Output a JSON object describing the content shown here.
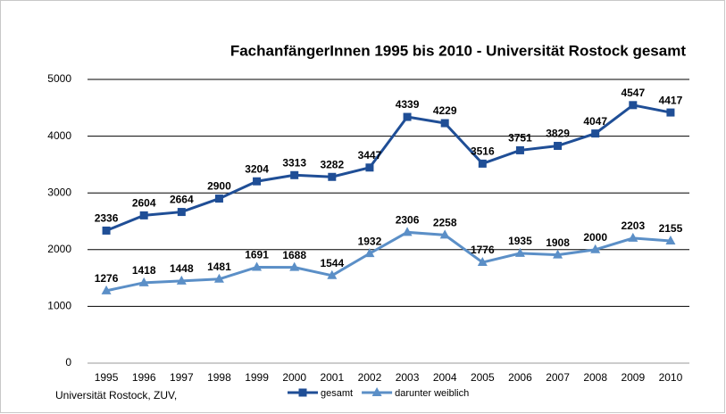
{
  "chart_data": {
    "type": "line",
    "title": "FachanfängerInnen 1995 bis 2010 - Universität Rostock gesamt",
    "note": "Universität Rostock, ZUV,",
    "categories": [
      "1995",
      "1996",
      "1997",
      "1998",
      "1999",
      "2000",
      "2001",
      "2002",
      "2003",
      "2004",
      "2005",
      "2006",
      "2007",
      "2008",
      "2009",
      "2010"
    ],
    "series": [
      {
        "name": "gesamt",
        "color": "#1f4e96",
        "marker": "square",
        "values": [
          2336,
          2604,
          2664,
          2900,
          3204,
          3313,
          3282,
          3447,
          4339,
          4229,
          3516,
          3751,
          3829,
          4047,
          4547,
          4417
        ]
      },
      {
        "name": "darunter weiblich",
        "color": "#5b8fc7",
        "marker": "triangle",
        "values": [
          1276,
          1418,
          1448,
          1481,
          1691,
          1688,
          1544,
          1932,
          2306,
          2258,
          1776,
          1935,
          1908,
          2000,
          2203,
          2155
        ]
      }
    ],
    "ylim": [
      0,
      5000
    ],
    "yticks": [
      0,
      1000,
      2000,
      3000,
      4000,
      5000
    ],
    "grid": true,
    "legend": "bottom"
  }
}
